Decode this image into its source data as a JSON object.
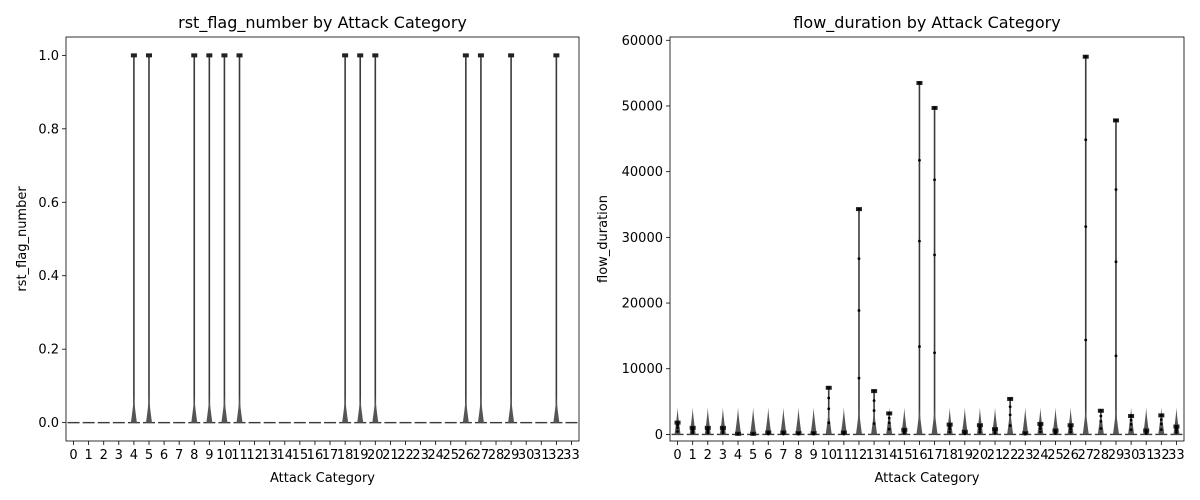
{
  "chart_data": [
    {
      "type": "violin",
      "title": "rst_flag_number by Attack Category",
      "xlabel": "Attack Category",
      "ylabel": "rst_flag_number",
      "categories": [
        "0",
        "1",
        "2",
        "3",
        "4",
        "5",
        "6",
        "7",
        "8",
        "9",
        "10",
        "11",
        "12",
        "13",
        "14",
        "15",
        "16",
        "17",
        "18",
        "19",
        "20",
        "21",
        "22",
        "23",
        "24",
        "25",
        "26",
        "27",
        "28",
        "29",
        "30",
        "31",
        "32",
        "33"
      ],
      "ylim": [
        -0.05,
        1.05
      ],
      "yticks": [
        0.0,
        0.2,
        0.4,
        0.6,
        0.8,
        1.0
      ],
      "ytick_labels": [
        "0.0",
        "0.2",
        "0.4",
        "0.6",
        "0.8",
        "1.0"
      ],
      "max_values": [
        0,
        0,
        0,
        0,
        1,
        1,
        0,
        0,
        1,
        1,
        1,
        1,
        0,
        0,
        0,
        0,
        0,
        0,
        1,
        1,
        1,
        0,
        0,
        0,
        0,
        0,
        1,
        1,
        0,
        1,
        0,
        0,
        1,
        0
      ],
      "grid": false
    },
    {
      "type": "violin",
      "title": "flow_duration by Attack Category",
      "xlabel": "Attack Category",
      "ylabel": "flow_duration",
      "categories": [
        "0",
        "1",
        "2",
        "3",
        "4",
        "5",
        "6",
        "7",
        "8",
        "9",
        "10",
        "11",
        "12",
        "13",
        "14",
        "15",
        "16",
        "17",
        "18",
        "19",
        "20",
        "21",
        "22",
        "23",
        "24",
        "25",
        "26",
        "27",
        "28",
        "29",
        "30",
        "31",
        "32",
        "33"
      ],
      "ylim": [
        -1000,
        60500
      ],
      "yticks": [
        0,
        10000,
        20000,
        30000,
        40000,
        50000,
        60000
      ],
      "ytick_labels": [
        "0",
        "10000",
        "20000",
        "30000",
        "40000",
        "50000",
        "60000"
      ],
      "max_values": [
        1800,
        1000,
        1000,
        1000,
        100,
        100,
        300,
        300,
        200,
        200,
        7100,
        300,
        34300,
        6600,
        3200,
        700,
        53500,
        49700,
        1500,
        400,
        1400,
        800,
        5400,
        200,
        1600,
        600,
        1400,
        57500,
        3600,
        47800,
        2800,
        600,
        2900,
        1200
      ],
      "grid": false
    }
  ]
}
